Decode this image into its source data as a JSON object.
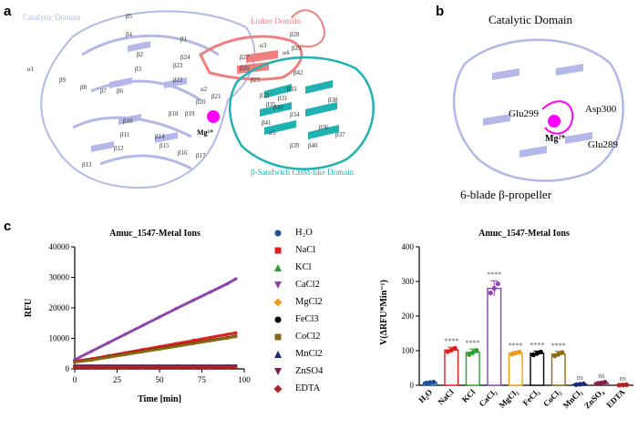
{
  "panel_labels": {
    "a": "a",
    "b": "b",
    "c": "c"
  },
  "panel_a": {
    "domain_catalytic": "Catalytic Domain",
    "domain_linker": "Linker Domain",
    "domain_cbm": "β-Sandwich CBM-like Domain",
    "ion_label": "Mg²⁺",
    "strands": [
      "β1",
      "β2",
      "β3",
      "β4",
      "β5",
      "β6",
      "β7",
      "β8",
      "β9",
      "β10",
      "β11",
      "β12",
      "β13",
      "β14",
      "β15",
      "β16",
      "β17",
      "β18",
      "β19",
      "β20",
      "β21",
      "β22",
      "β23",
      "β24",
      "β25",
      "β26",
      "β27",
      "β28",
      "β29",
      "β30",
      "β31",
      "β32",
      "β33",
      "β34",
      "β35",
      "β36",
      "β37",
      "β38",
      "β39",
      "β40",
      "β41",
      "β42"
    ],
    "helices": [
      "α1",
      "α2",
      "α3",
      "α4",
      "α5"
    ],
    "colors": {
      "catalytic": "#b3b8e8",
      "linker": "#f08080",
      "cbm": "#20b2b2",
      "ion": "#ff00ff"
    }
  },
  "panel_b": {
    "title": "Catalytic Domain",
    "subtitle": "6-blade β-propeller",
    "residues": [
      "Glu299",
      "Asp300",
      "Glu289"
    ],
    "ion_label": "Mg²⁺"
  },
  "chart_data": [
    {
      "type": "line",
      "title": "Amuc_1547-Metal Ions",
      "xlabel": "Time [min]",
      "ylabel": "RFU",
      "xlim": [
        0,
        100
      ],
      "ylim": [
        0,
        40000
      ],
      "xticks": [
        "0",
        "25",
        "50",
        "75",
        "100"
      ],
      "yticks": [
        "0",
        "10000",
        "20000",
        "30000",
        "40000"
      ],
      "x": [
        0,
        10,
        20,
        30,
        40,
        50,
        60,
        70,
        80,
        90,
        95
      ],
      "series": [
        {
          "name": "H₂O",
          "color": "#1f4e9a",
          "marker": "circle",
          "values": [
            1000,
            1000,
            1000,
            1000,
            1000,
            1000,
            1000,
            1000,
            1000,
            1000,
            1000
          ]
        },
        {
          "name": "NaCl",
          "color": "#e02020",
          "marker": "square",
          "values": [
            2500,
            3300,
            4300,
            5300,
            6300,
            7300,
            8300,
            9300,
            10300,
            11300,
            11800
          ]
        },
        {
          "name": "KCl",
          "color": "#2ca02c",
          "marker": "triangle",
          "values": [
            2300,
            3000,
            3900,
            4800,
            5700,
            6600,
            7500,
            8400,
            9300,
            10200,
            10700
          ]
        },
        {
          "name": "CaCl2",
          "color": "#8e44ad",
          "marker": "triangle-down",
          "values": [
            3000,
            5800,
            8600,
            11400,
            14200,
            17000,
            19800,
            22500,
            25200,
            27900,
            29500
          ]
        },
        {
          "name": "MgCl2",
          "color": "#f39c12",
          "marker": "diamond",
          "values": [
            2300,
            3000,
            3900,
            4800,
            5700,
            6600,
            7500,
            8400,
            9300,
            10200,
            10700
          ]
        },
        {
          "name": "FeCl3",
          "color": "#000000",
          "marker": "circle",
          "values": [
            2300,
            3000,
            3900,
            4800,
            5700,
            6600,
            7500,
            8400,
            9300,
            10200,
            10700
          ]
        },
        {
          "name": "CoCl2",
          "color": "#8b6914",
          "marker": "square",
          "values": [
            2200,
            2900,
            3800,
            4700,
            5600,
            6500,
            7400,
            8300,
            9200,
            10100,
            10600
          ]
        },
        {
          "name": "MnCl2",
          "color": "#1a2a7a",
          "marker": "triangle",
          "values": [
            800,
            800,
            800,
            800,
            800,
            800,
            800,
            800,
            800,
            800,
            800
          ]
        },
        {
          "name": "ZnSO4",
          "color": "#7a1f4a",
          "marker": "triangle-down",
          "values": [
            900,
            900,
            900,
            900,
            900,
            900,
            900,
            900,
            900,
            900,
            900
          ]
        },
        {
          "name": "EDTA",
          "color": "#b22222",
          "marker": "diamond",
          "values": [
            500,
            500,
            500,
            500,
            500,
            500,
            500,
            500,
            500,
            500,
            500
          ]
        }
      ]
    },
    {
      "type": "bar",
      "title": "Amuc_1547-Metal Ions",
      "ylabel": "V(ΔRFU*Min⁻¹)",
      "ylim": [
        0,
        400
      ],
      "yticks": [
        "0",
        "100",
        "200",
        "300",
        "400"
      ],
      "categories": [
        "H₂O",
        "NaCl",
        "KCl",
        "CaCl₂",
        "MgCl₂",
        "FeCl₃",
        "CoCl₂",
        "MnCl₂",
        "ZnSO₄",
        "EDTA"
      ],
      "values": [
        8,
        102,
        95,
        280,
        93,
        92,
        90,
        3,
        7,
        1
      ],
      "errors": [
        2,
        8,
        10,
        22,
        5,
        7,
        8,
        2,
        3,
        1
      ],
      "significance": [
        "",
        "****",
        "****",
        "****",
        "****",
        "****",
        "****",
        "ns",
        "ns",
        "ns"
      ],
      "colors": [
        "#1f4e9a",
        "#e02020",
        "#2ca02c",
        "#8e44ad",
        "#f39c12",
        "#000000",
        "#8b6914",
        "#1a2a7a",
        "#7a1f4a",
        "#b22222"
      ]
    }
  ]
}
